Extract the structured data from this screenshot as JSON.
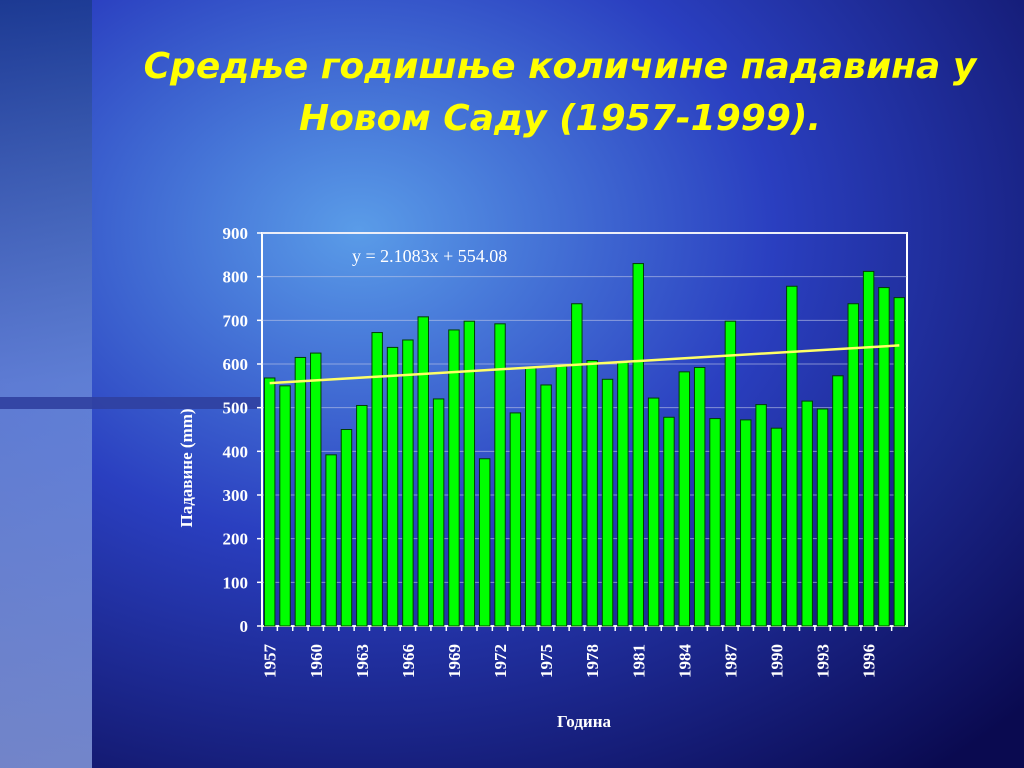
{
  "chart_data": {
    "type": "bar",
    "title": "Средње годишње количине падавина у Новом Саду (1957-1999).",
    "x_label": "Година",
    "y_label": "Падавине (mm)",
    "categories": [
      "1957",
      null,
      null,
      "1960",
      null,
      null,
      "1963",
      null,
      null,
      "1966",
      null,
      null,
      "1969",
      null,
      null,
      "1972",
      null,
      null,
      "1975",
      null,
      null,
      "1978",
      null,
      null,
      "1981",
      null,
      null,
      "1984",
      null,
      null,
      "1987",
      null,
      null,
      "1990",
      null,
      null,
      "1993",
      null,
      null,
      "1996",
      null,
      null
    ],
    "values": [
      568,
      550,
      615,
      625,
      392,
      450,
      505,
      672,
      638,
      655,
      708,
      520,
      678,
      698,
      383,
      692,
      488,
      592,
      552,
      595,
      738,
      608,
      565,
      605,
      830,
      522,
      478,
      582,
      592,
      475,
      698,
      472,
      507,
      453,
      778,
      515,
      497,
      573,
      738,
      812,
      775,
      752
    ],
    "color": "#00ff00",
    "ylim": [
      0,
      900
    ],
    "yticks": [
      0,
      100,
      200,
      300,
      400,
      500,
      600,
      700,
      800,
      900
    ],
    "grid": true,
    "trendline": {
      "label": "y = 2.1083x + 554.08",
      "slope": 2.1083,
      "intercept": 554.08,
      "color": "#ffff66"
    }
  }
}
